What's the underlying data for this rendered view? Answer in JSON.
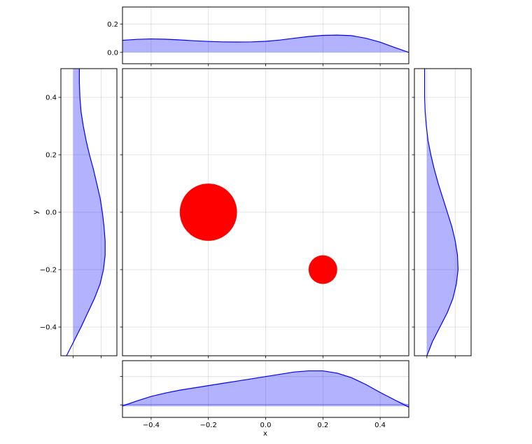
{
  "chart_data": {
    "type": "scatter",
    "xlabel": "x",
    "ylabel": "y",
    "xlim": [
      -0.5,
      0.5
    ],
    "ylim": [
      -0.5,
      0.5
    ],
    "grid": true,
    "points": [
      {
        "x": -0.2,
        "y": 0.0,
        "r": 0.1
      },
      {
        "x": 0.2,
        "y": -0.2,
        "r": 0.05
      }
    ],
    "x_ticks": [
      "−0.4",
      "−0.2",
      "0.0",
      "0.2",
      "0.4"
    ],
    "y_ticks": [
      "−0.4",
      "−0.2",
      "0.0",
      "0.2",
      "0.4"
    ],
    "marginals": {
      "top": {
        "ylim": [
          -0.08,
          0.32
        ],
        "y_ticks": [
          "0.0",
          "0.2"
        ],
        "density": [
          [
            -0.5,
            0.085
          ],
          [
            -0.45,
            0.092
          ],
          [
            -0.4,
            0.095
          ],
          [
            -0.35,
            0.093
          ],
          [
            -0.3,
            0.088
          ],
          [
            -0.25,
            0.082
          ],
          [
            -0.2,
            0.077
          ],
          [
            -0.15,
            0.074
          ],
          [
            -0.1,
            0.073
          ],
          [
            -0.05,
            0.074
          ],
          [
            0.0,
            0.078
          ],
          [
            0.05,
            0.087
          ],
          [
            0.1,
            0.1
          ],
          [
            0.15,
            0.112
          ],
          [
            0.2,
            0.12
          ],
          [
            0.25,
            0.122
          ],
          [
            0.3,
            0.118
          ],
          [
            0.35,
            0.1
          ],
          [
            0.4,
            0.072
          ],
          [
            0.45,
            0.035
          ],
          [
            0.5,
            0.0
          ]
        ]
      },
      "bottom": {
        "ylim": [
          0.0,
          1.0
        ],
        "baseline": 0.22,
        "density": [
          [
            -0.5,
            0.2
          ],
          [
            -0.45,
            0.29
          ],
          [
            -0.4,
            0.37
          ],
          [
            -0.35,
            0.43
          ],
          [
            -0.3,
            0.48
          ],
          [
            -0.25,
            0.52
          ],
          [
            -0.2,
            0.56
          ],
          [
            -0.15,
            0.6
          ],
          [
            -0.1,
            0.64
          ],
          [
            -0.05,
            0.68
          ],
          [
            0.0,
            0.72
          ],
          [
            0.05,
            0.76
          ],
          [
            0.1,
            0.8
          ],
          [
            0.15,
            0.82
          ],
          [
            0.2,
            0.82
          ],
          [
            0.25,
            0.78
          ],
          [
            0.3,
            0.7
          ],
          [
            0.35,
            0.58
          ],
          [
            0.4,
            0.44
          ],
          [
            0.45,
            0.31
          ],
          [
            0.5,
            0.18
          ]
        ]
      },
      "left": {
        "xlim": [
          0.0,
          1.0
        ],
        "baseline": 0.22,
        "density": [
          [
            -0.5,
            0.1
          ],
          [
            -0.45,
            0.23
          ],
          [
            -0.4,
            0.36
          ],
          [
            -0.35,
            0.48
          ],
          [
            -0.3,
            0.6
          ],
          [
            -0.25,
            0.7
          ],
          [
            -0.2,
            0.76
          ],
          [
            -0.15,
            0.79
          ],
          [
            -0.1,
            0.79
          ],
          [
            -0.05,
            0.77
          ],
          [
            0.0,
            0.74
          ],
          [
            0.05,
            0.7
          ],
          [
            0.1,
            0.64
          ],
          [
            0.15,
            0.58
          ],
          [
            0.2,
            0.51
          ],
          [
            0.25,
            0.45
          ],
          [
            0.3,
            0.4
          ],
          [
            0.35,
            0.36
          ],
          [
            0.4,
            0.34
          ],
          [
            0.45,
            0.33
          ],
          [
            0.5,
            0.33
          ]
        ]
      },
      "right": {
        "xlim": [
          0.0,
          1.0
        ],
        "baseline": 0.22,
        "density": [
          [
            -0.5,
            0.22
          ],
          [
            -0.45,
            0.32
          ],
          [
            -0.4,
            0.45
          ],
          [
            -0.35,
            0.58
          ],
          [
            -0.3,
            0.68
          ],
          [
            -0.25,
            0.74
          ],
          [
            -0.2,
            0.77
          ],
          [
            -0.15,
            0.76
          ],
          [
            -0.1,
            0.72
          ],
          [
            -0.05,
            0.66
          ],
          [
            0.0,
            0.58
          ],
          [
            0.05,
            0.5
          ],
          [
            0.1,
            0.42
          ],
          [
            0.15,
            0.35
          ],
          [
            0.2,
            0.29
          ],
          [
            0.25,
            0.24
          ],
          [
            0.3,
            0.21
          ],
          [
            0.35,
            0.19
          ],
          [
            0.4,
            0.18
          ],
          [
            0.45,
            0.18
          ],
          [
            0.5,
            0.18
          ]
        ]
      }
    }
  }
}
